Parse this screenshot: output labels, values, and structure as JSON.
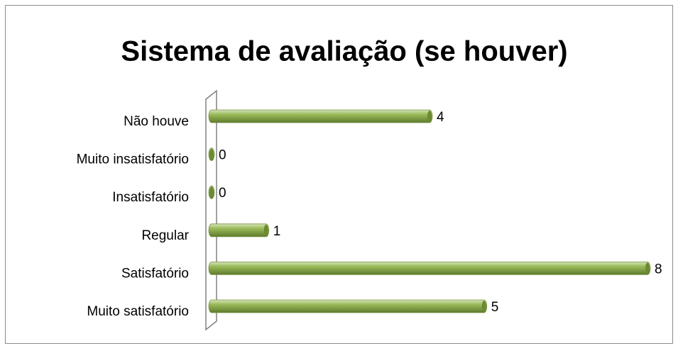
{
  "chart_data": {
    "type": "bar",
    "orientation": "horizontal",
    "title": "Sistema de avaliação (se houver)",
    "categories": [
      "Não houve",
      "Muito insatisfatório",
      "Insatisfatório",
      "Regular",
      "Satisfatório",
      "Muito satisfatório"
    ],
    "values": [
      4,
      0,
      0,
      1,
      8,
      5
    ],
    "color": "#9bbb59"
  }
}
